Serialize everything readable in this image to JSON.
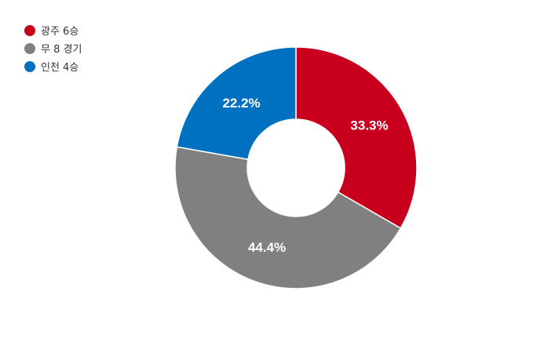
{
  "chart_data": {
    "type": "pie",
    "donut": true,
    "series": [
      {
        "name": "광주 6승",
        "value": 33.3,
        "label": "33.3%",
        "color": "#c8001e"
      },
      {
        "name": "무 8 경기",
        "value": 44.4,
        "label": "44.4%",
        "color": "#808080"
      },
      {
        "name": "인천 4승",
        "value": 22.2,
        "label": "22.2%",
        "color": "#0070c0"
      }
    ],
    "legend_position": "top-left"
  }
}
